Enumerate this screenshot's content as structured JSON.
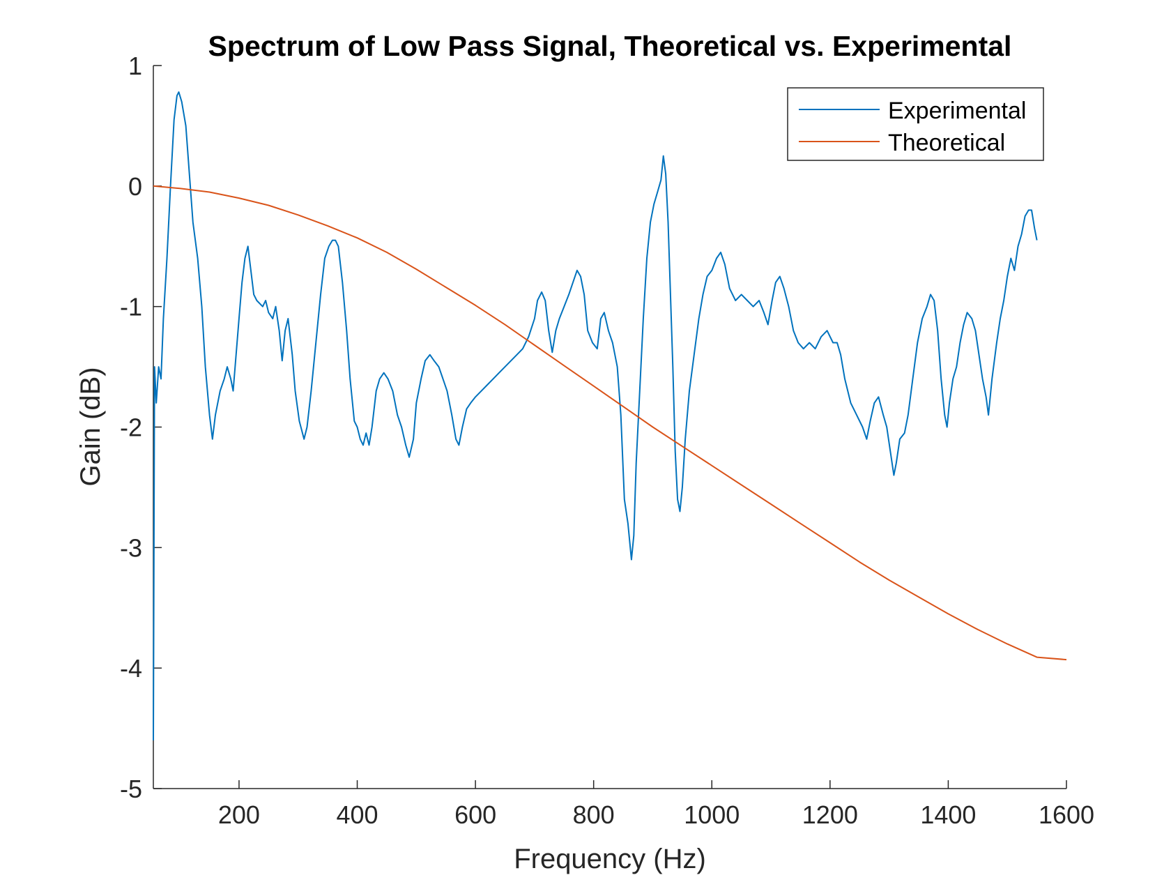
{
  "chart_data": {
    "type": "line",
    "title": "Spectrum of Low Pass Signal, Theoretical vs. Experimental",
    "xlabel": "Frequency (Hz)",
    "ylabel": "Gain (dB)",
    "xlim": [
      55,
      1600
    ],
    "ylim": [
      -5,
      1
    ],
    "xticks": [
      200,
      400,
      600,
      800,
      1000,
      1200,
      1400,
      1600
    ],
    "yticks": [
      1,
      0,
      -1,
      -2,
      -3,
      -4,
      -5
    ],
    "grid": false,
    "legend_position": "top-right",
    "series": [
      {
        "name": "Experimental",
        "color": "#0072BD",
        "points": [
          [
            55,
            -4.6
          ],
          [
            57,
            -1.5
          ],
          [
            60,
            -1.8
          ],
          [
            64,
            -1.5
          ],
          [
            68,
            -1.6
          ],
          [
            72,
            -1.1
          ],
          [
            78,
            -0.6
          ],
          [
            84,
            0.0
          ],
          [
            90,
            0.55
          ],
          [
            95,
            0.75
          ],
          [
            98,
            0.78
          ],
          [
            103,
            0.7
          ],
          [
            110,
            0.5
          ],
          [
            116,
            0.1
          ],
          [
            122,
            -0.3
          ],
          [
            130,
            -0.6
          ],
          [
            137,
            -1.0
          ],
          [
            143,
            -1.5
          ],
          [
            150,
            -1.9
          ],
          [
            155,
            -2.1
          ],
          [
            160,
            -1.9
          ],
          [
            168,
            -1.7
          ],
          [
            175,
            -1.6
          ],
          [
            180,
            -1.5
          ],
          [
            186,
            -1.6
          ],
          [
            190,
            -1.7
          ],
          [
            195,
            -1.4
          ],
          [
            200,
            -1.1
          ],
          [
            205,
            -0.8
          ],
          [
            210,
            -0.6
          ],
          [
            215,
            -0.5
          ],
          [
            220,
            -0.7
          ],
          [
            225,
            -0.9
          ],
          [
            230,
            -0.95
          ],
          [
            240,
            -1.0
          ],
          [
            245,
            -0.95
          ],
          [
            250,
            -1.05
          ],
          [
            257,
            -1.1
          ],
          [
            262,
            -1.0
          ],
          [
            268,
            -1.2
          ],
          [
            273,
            -1.45
          ],
          [
            278,
            -1.2
          ],
          [
            283,
            -1.1
          ],
          [
            290,
            -1.4
          ],
          [
            295,
            -1.7
          ],
          [
            302,
            -1.95
          ],
          [
            310,
            -2.1
          ],
          [
            315,
            -2.0
          ],
          [
            322,
            -1.7
          ],
          [
            330,
            -1.3
          ],
          [
            338,
            -0.9
          ],
          [
            345,
            -0.6
          ],
          [
            352,
            -0.5
          ],
          [
            358,
            -0.45
          ],
          [
            363,
            -0.45
          ],
          [
            368,
            -0.5
          ],
          [
            375,
            -0.8
          ],
          [
            382,
            -1.2
          ],
          [
            388,
            -1.6
          ],
          [
            395,
            -1.95
          ],
          [
            400,
            -2.0
          ],
          [
            405,
            -2.1
          ],
          [
            410,
            -2.15
          ],
          [
            415,
            -2.05
          ],
          [
            420,
            -2.15
          ],
          [
            425,
            -2.0
          ],
          [
            432,
            -1.7
          ],
          [
            438,
            -1.6
          ],
          [
            445,
            -1.55
          ],
          [
            452,
            -1.6
          ],
          [
            460,
            -1.7
          ],
          [
            468,
            -1.9
          ],
          [
            475,
            -2.0
          ],
          [
            482,
            -2.15
          ],
          [
            488,
            -2.25
          ],
          [
            495,
            -2.1
          ],
          [
            500,
            -1.8
          ],
          [
            508,
            -1.6
          ],
          [
            515,
            -1.45
          ],
          [
            523,
            -1.4
          ],
          [
            530,
            -1.45
          ],
          [
            538,
            -1.5
          ],
          [
            545,
            -1.6
          ],
          [
            552,
            -1.7
          ],
          [
            560,
            -1.9
          ],
          [
            567,
            -2.1
          ],
          [
            572,
            -2.15
          ],
          [
            578,
            -2.0
          ],
          [
            585,
            -1.85
          ],
          [
            592,
            -1.8
          ],
          [
            600,
            -1.75
          ],
          [
            610,
            -1.7
          ],
          [
            620,
            -1.65
          ],
          [
            630,
            -1.6
          ],
          [
            640,
            -1.55
          ],
          [
            650,
            -1.5
          ],
          [
            660,
            -1.45
          ],
          [
            670,
            -1.4
          ],
          [
            680,
            -1.35
          ],
          [
            690,
            -1.25
          ],
          [
            700,
            -1.1
          ],
          [
            705,
            -0.95
          ],
          [
            712,
            -0.88
          ],
          [
            718,
            -0.95
          ],
          [
            724,
            -1.2
          ],
          [
            730,
            -1.38
          ],
          [
            736,
            -1.2
          ],
          [
            742,
            -1.1
          ],
          [
            750,
            -1.0
          ],
          [
            758,
            -0.9
          ],
          [
            765,
            -0.8
          ],
          [
            772,
            -0.7
          ],
          [
            778,
            -0.75
          ],
          [
            784,
            -0.9
          ],
          [
            790,
            -1.2
          ],
          [
            798,
            -1.3
          ],
          [
            806,
            -1.35
          ],
          [
            812,
            -1.1
          ],
          [
            818,
            -1.05
          ],
          [
            825,
            -1.2
          ],
          [
            832,
            -1.3
          ],
          [
            840,
            -1.5
          ],
          [
            846,
            -1.9
          ],
          [
            852,
            -2.6
          ],
          [
            858,
            -2.8
          ],
          [
            864,
            -3.1
          ],
          [
            868,
            -2.9
          ],
          [
            872,
            -2.3
          ],
          [
            878,
            -1.7
          ],
          [
            884,
            -1.1
          ],
          [
            890,
            -0.6
          ],
          [
            896,
            -0.3
          ],
          [
            902,
            -0.15
          ],
          [
            908,
            -0.05
          ],
          [
            914,
            0.05
          ],
          [
            918,
            0.25
          ],
          [
            922,
            0.1
          ],
          [
            926,
            -0.3
          ],
          [
            930,
            -0.9
          ],
          [
            934,
            -1.5
          ],
          [
            938,
            -2.2
          ],
          [
            942,
            -2.6
          ],
          [
            946,
            -2.7
          ],
          [
            950,
            -2.5
          ],
          [
            955,
            -2.1
          ],
          [
            962,
            -1.7
          ],
          [
            970,
            -1.4
          ],
          [
            978,
            -1.1
          ],
          [
            985,
            -0.9
          ],
          [
            992,
            -0.75
          ],
          [
            1000,
            -0.7
          ],
          [
            1008,
            -0.6
          ],
          [
            1015,
            -0.55
          ],
          [
            1022,
            -0.65
          ],
          [
            1030,
            -0.85
          ],
          [
            1040,
            -0.95
          ],
          [
            1050,
            -0.9
          ],
          [
            1060,
            -0.95
          ],
          [
            1070,
            -1.0
          ],
          [
            1080,
            -0.95
          ],
          [
            1088,
            -1.05
          ],
          [
            1095,
            -1.15
          ],
          [
            1102,
            -0.95
          ],
          [
            1108,
            -0.8
          ],
          [
            1115,
            -0.75
          ],
          [
            1122,
            -0.85
          ],
          [
            1130,
            -1.0
          ],
          [
            1138,
            -1.2
          ],
          [
            1146,
            -1.3
          ],
          [
            1155,
            -1.35
          ],
          [
            1165,
            -1.3
          ],
          [
            1175,
            -1.35
          ],
          [
            1185,
            -1.25
          ],
          [
            1195,
            -1.2
          ],
          [
            1205,
            -1.3
          ],
          [
            1212,
            -1.3
          ],
          [
            1218,
            -1.4
          ],
          [
            1225,
            -1.6
          ],
          [
            1235,
            -1.8
          ],
          [
            1245,
            -1.9
          ],
          [
            1255,
            -2.0
          ],
          [
            1262,
            -2.1
          ],
          [
            1268,
            -1.95
          ],
          [
            1275,
            -1.8
          ],
          [
            1282,
            -1.75
          ],
          [
            1290,
            -1.9
          ],
          [
            1296,
            -2.0
          ],
          [
            1302,
            -2.2
          ],
          [
            1308,
            -2.4
          ],
          [
            1312,
            -2.3
          ],
          [
            1318,
            -2.1
          ],
          [
            1326,
            -2.05
          ],
          [
            1332,
            -1.9
          ],
          [
            1340,
            -1.6
          ],
          [
            1348,
            -1.3
          ],
          [
            1356,
            -1.1
          ],
          [
            1364,
            -1.0
          ],
          [
            1370,
            -0.9
          ],
          [
            1376,
            -0.95
          ],
          [
            1382,
            -1.2
          ],
          [
            1388,
            -1.6
          ],
          [
            1394,
            -1.9
          ],
          [
            1398,
            -2.0
          ],
          [
            1402,
            -1.8
          ],
          [
            1408,
            -1.6
          ],
          [
            1414,
            -1.5
          ],
          [
            1420,
            -1.3
          ],
          [
            1426,
            -1.15
          ],
          [
            1432,
            -1.05
          ],
          [
            1440,
            -1.1
          ],
          [
            1446,
            -1.2
          ],
          [
            1452,
            -1.4
          ],
          [
            1458,
            -1.6
          ],
          [
            1464,
            -1.75
          ],
          [
            1468,
            -1.9
          ],
          [
            1474,
            -1.6
          ],
          [
            1482,
            -1.3
          ],
          [
            1488,
            -1.1
          ],
          [
            1494,
            -0.95
          ],
          [
            1500,
            -0.75
          ],
          [
            1506,
            -0.6
          ],
          [
            1512,
            -0.7
          ],
          [
            1518,
            -0.5
          ],
          [
            1524,
            -0.4
          ],
          [
            1530,
            -0.25
          ],
          [
            1536,
            -0.2
          ],
          [
            1541,
            -0.2
          ],
          [
            1546,
            -0.35
          ],
          [
            1550,
            -0.45
          ]
        ]
      },
      {
        "name": "Theoretical",
        "color": "#D95319",
        "points": [
          [
            55,
            0.0
          ],
          [
            100,
            -0.02
          ],
          [
            150,
            -0.05
          ],
          [
            200,
            -0.1
          ],
          [
            250,
            -0.16
          ],
          [
            300,
            -0.24
          ],
          [
            350,
            -0.33
          ],
          [
            400,
            -0.43
          ],
          [
            450,
            -0.55
          ],
          [
            500,
            -0.69
          ],
          [
            550,
            -0.84
          ],
          [
            600,
            -0.99
          ],
          [
            650,
            -1.15
          ],
          [
            700,
            -1.32
          ],
          [
            750,
            -1.49
          ],
          [
            800,
            -1.66
          ],
          [
            850,
            -1.83
          ],
          [
            900,
            -2.0
          ],
          [
            950,
            -2.16
          ],
          [
            1000,
            -2.32
          ],
          [
            1050,
            -2.48
          ],
          [
            1100,
            -2.64
          ],
          [
            1150,
            -2.8
          ],
          [
            1200,
            -2.96
          ],
          [
            1250,
            -3.12
          ],
          [
            1300,
            -3.27
          ],
          [
            1350,
            -3.41
          ],
          [
            1400,
            -3.55
          ],
          [
            1450,
            -3.68
          ],
          [
            1500,
            -3.8
          ],
          [
            1550,
            -3.91
          ],
          [
            1600,
            -3.93
          ]
        ]
      }
    ]
  }
}
